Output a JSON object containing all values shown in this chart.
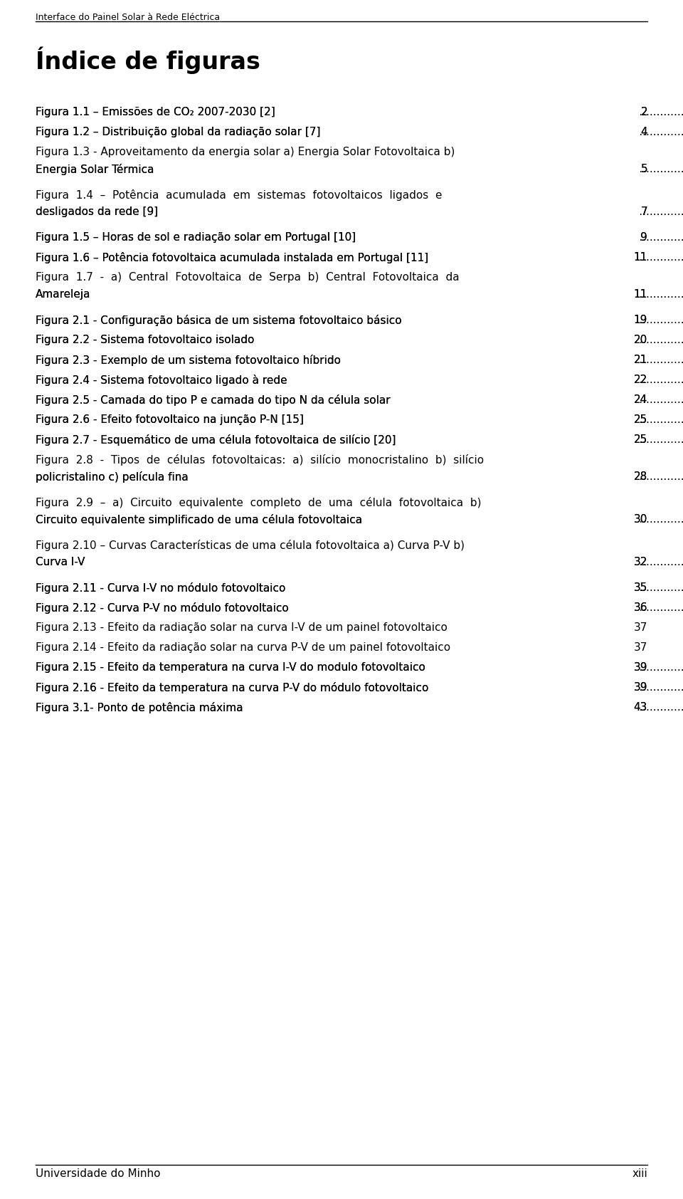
{
  "header_text": "Interface do Painel Solar à Rede Eléctrica",
  "title": "Índice de figuras",
  "background_color": "#ffffff",
  "text_color": "#000000",
  "header_font_size": 9,
  "title_font_size": 24,
  "body_font_size": 11,
  "footer_text": "Universidade do Minho",
  "footer_right": "xiii",
  "entries": [
    {
      "lines": [
        "Figura 1.1 – Emissões de CO₂ 2007-2030 [2]"
      ],
      "page": "2",
      "dots": true
    },
    {
      "lines": [
        "Figura 1.2 – Distribuição global da radiação solar [7]"
      ],
      "page": "4",
      "dots": true
    },
    {
      "lines": [
        "Figura 1.3 - Aproveitamento da energia solar a) Energia Solar Fotovoltaica b)",
        "Energia Solar Térmica"
      ],
      "page": "5",
      "dots": true
    },
    {
      "lines": [
        "Figura  1.4  –  Potência  acumulada  em  sistemas  fotovoltaicos  ligados  e",
        "desligados da rede [9]"
      ],
      "page": "7",
      "dots": true
    },
    {
      "lines": [
        "Figura 1.5 – Horas de sol e radiação solar em Portugal [10]"
      ],
      "page": "9",
      "dots": true
    },
    {
      "lines": [
        "Figura 1.6 – Potência fotovoltaica acumulada instalada em Portugal [11]"
      ],
      "page": "11",
      "dots": true
    },
    {
      "lines": [
        "Figura  1.7  -  a)  Central  Fotovoltaica  de  Serpa  b)  Central  Fotovoltaica  da",
        "Amareleja"
      ],
      "page": "11",
      "dots": true
    },
    {
      "lines": [
        "Figura 2.1 - Configuração básica de um sistema fotovoltaico básico"
      ],
      "page": "19",
      "dots": true
    },
    {
      "lines": [
        "Figura 2.2 - Sistema fotovoltaico isolado"
      ],
      "page": "20",
      "dots": true
    },
    {
      "lines": [
        "Figura 2.3 - Exemplo de um sistema fotovoltaico híbrido"
      ],
      "page": "21",
      "dots": true
    },
    {
      "lines": [
        "Figura 2.4 - Sistema fotovoltaico ligado à rede"
      ],
      "page": "22",
      "dots": true
    },
    {
      "lines": [
        "Figura 2.5 - Camada do tipo P e camada do tipo N da célula solar"
      ],
      "page": "24",
      "dots": true
    },
    {
      "lines": [
        "Figura 2.6 - Efeito fotovoltaico na junção P-N [15]"
      ],
      "page": "25",
      "dots": true
    },
    {
      "lines": [
        "Figura 2.7 - Esquemático de uma célula fotovoltaica de silício [20]"
      ],
      "page": "25",
      "dots": true
    },
    {
      "lines": [
        "Figura  2.8  -  Tipos  de  células  fotovoltaicas:  a)  silício  monocristalino  b)  silício",
        "policristalino c) película fina"
      ],
      "page": "28",
      "dots": true
    },
    {
      "lines": [
        "Figura  2.9  –  a)  Circuito  equivalente  completo  de  uma  célula  fotovoltaica  b)",
        "Circuito equivalente simplificado de uma célula fotovoltaica"
      ],
      "page": "30",
      "dots": true
    },
    {
      "lines": [
        "Figura 2.10 – Curvas Características de uma célula fotovoltaica a) Curva P-V b)",
        "Curva I-V"
      ],
      "page": "32",
      "dots": true
    },
    {
      "lines": [
        "Figura 2.11 - Curva I-V no módulo fotovoltaico"
      ],
      "page": "35",
      "dots": true
    },
    {
      "lines": [
        "Figura 2.12 - Curva P-V no módulo fotovoltaico"
      ],
      "page": "36",
      "dots": true
    },
    {
      "lines": [
        "Figura 2.13 - Efeito da radiação solar na curva I-V de um painel fotovoltaico"
      ],
      "page": "37",
      "dots": false
    },
    {
      "lines": [
        "Figura 2.14 - Efeito da radiação solar na curva P-V de um painel fotovoltaico"
      ],
      "page": "37",
      "dots": false
    },
    {
      "lines": [
        "Figura 2.15 - Efeito da temperatura na curva I-V do modulo fotovoltaico"
      ],
      "page": "39",
      "dots": true
    },
    {
      "lines": [
        "Figura 2.16 - Efeito da temperatura na curva P-V do módulo fotovoltaico"
      ],
      "page": "39",
      "dots": true
    },
    {
      "lines": [
        "Figura 3.1- Ponto de potência máxima"
      ],
      "page": "43",
      "dots": true
    }
  ]
}
